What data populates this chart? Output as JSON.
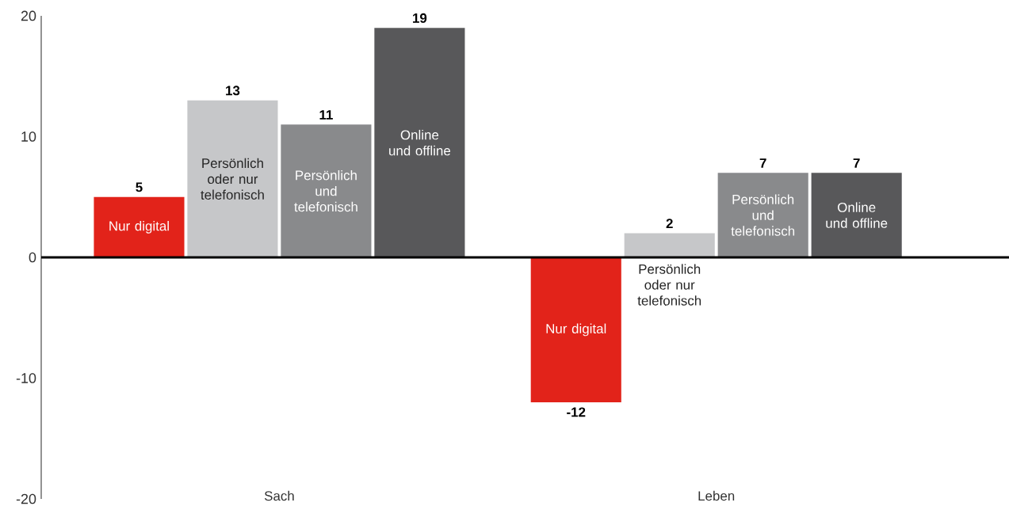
{
  "chart_data": {
    "type": "bar",
    "categories": [
      "Sach",
      "Leben"
    ],
    "series": [
      {
        "name": "Nur digital",
        "color": "#e2231a",
        "values": [
          5,
          -12
        ]
      },
      {
        "name": "Persönlich oder nur telefonisch",
        "color": "#c6c7c9",
        "values": [
          13,
          2
        ]
      },
      {
        "name": "Persönlich und telefonisch",
        "color": "#898a8c",
        "values": [
          11,
          7
        ]
      },
      {
        "name": "Online und offline",
        "color": "#58585a",
        "values": [
          19,
          7
        ]
      }
    ],
    "ylim": [
      -20,
      20
    ],
    "yticks": [
      -20,
      -10,
      0,
      10,
      20
    ],
    "data_labels": true
  }
}
